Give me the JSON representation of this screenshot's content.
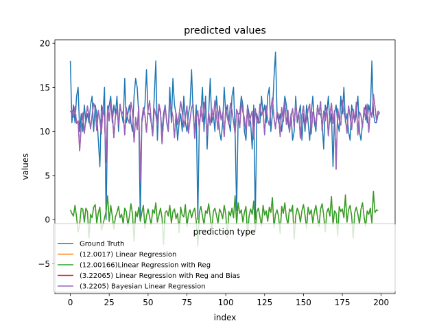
{
  "chart_data": {
    "type": "line",
    "title": "predicted values",
    "xlabel": "index",
    "ylabel": "values",
    "xlim": [
      -9.95,
      208.95
    ],
    "ylim": [
      -8.4,
      20.4
    ],
    "x_ticks": [
      0,
      25,
      50,
      75,
      100,
      125,
      150,
      175,
      200
    ],
    "y_ticks": [
      -5,
      0,
      5,
      10,
      15,
      20
    ],
    "grid": false,
    "legend": {
      "title": "prediction type",
      "placement": "lower-center",
      "entries": [
        "Ground Truth",
        "(12.0017) Linear Regression",
        "(12.00166)Linear Regression with Reg",
        "(3.22065) Linear Regression with Reg and Bias",
        "(3.2205) Bayesian Linear Regression"
      ]
    },
    "series": [
      {
        "name": "Ground Truth",
        "color": "#1f77b4",
        "x_start": 0,
        "values": [
          18,
          11,
          13,
          11,
          14,
          15,
          10,
          12,
          10,
          13,
          11,
          12,
          11,
          13,
          14,
          10,
          13,
          12,
          9,
          6,
          13,
          12,
          15,
          0,
          12,
          13,
          14,
          11,
          13,
          12,
          14,
          10,
          13,
          12,
          11,
          16,
          11,
          12,
          13,
          11,
          10,
          14,
          16,
          15,
          12,
          0,
          11,
          12,
          13,
          17,
          12,
          12,
          11,
          10,
          14,
          18,
          9,
          13,
          12,
          10,
          12,
          13,
          11,
          10,
          15,
          11,
          16,
          13,
          12,
          9,
          11,
          12,
          10,
          14,
          11,
          10,
          12,
          13,
          17,
          12,
          10,
          13,
          0,
          11,
          12,
          15,
          10,
          14,
          8,
          12,
          16,
          11,
          12,
          10,
          14,
          12,
          10,
          9,
          11,
          15,
          12,
          13,
          11,
          10,
          14,
          15,
          10,
          1,
          12,
          12,
          14,
          13,
          10,
          9,
          13,
          12,
          11,
          8,
          13,
          0,
          12,
          11,
          11,
          14,
          12,
          13,
          11,
          14,
          15,
          10,
          12,
          16,
          19,
          12,
          11,
          12,
          10,
          12,
          14,
          13,
          11,
          10,
          12,
          9,
          10,
          14,
          11,
          12,
          13,
          9,
          12,
          10,
          13,
          11,
          9,
          12,
          14,
          11,
          10,
          13,
          12,
          12,
          11,
          8,
          13,
          12,
          14,
          11,
          12,
          6,
          12,
          13,
          11,
          10,
          14,
          12,
          15,
          11,
          12,
          10,
          9,
          13,
          12,
          11,
          12,
          14,
          10,
          9,
          11,
          12,
          13,
          11,
          13,
          12,
          18,
          12,
          11,
          11,
          12,
          12
        ]
      },
      {
        "name": "(12.0017) Linear Regression",
        "color": "#ff7f0e",
        "x_start": 0,
        "values": [
          1.1,
          0.7,
          0.4,
          1.6,
          0.3,
          -1.4,
          -0.5,
          1.3,
          1.2,
          -0.3,
          1.3,
          0.9,
          -2.1,
          0.6,
          0.2,
          1.4,
          1.7,
          -0.4,
          0.8,
          1.4,
          -1.2,
          -0.6,
          0.2,
          0.9,
          2.7,
          -0.2,
          1.6,
          0.4,
          -1.1,
          0.3,
          0.8,
          1.5,
          0.2,
          0.6,
          -0.5,
          1.3,
          0.9,
          -0.7,
          0.4,
          1.8,
          0.6,
          -2.5,
          0.9,
          0.3,
          1.4,
          -0.2,
          0.8,
          1.6,
          -1.0,
          0.4,
          1.2,
          0.3,
          -0.6,
          1.1,
          0.7,
          1.9,
          -0.3,
          0.5,
          1.3,
          0.2,
          -2.8,
          0.8,
          1.0,
          0.4,
          1.6,
          -0.4,
          0.9,
          1.2,
          0.1,
          0.7,
          -1.5,
          1.4,
          0.5,
          0.3,
          1.7,
          -0.8,
          0.6,
          1.1,
          0.2,
          0.9,
          1.3,
          -0.2,
          -3.0,
          0.8,
          1.5,
          0.4,
          -0.6,
          1.0,
          0.7,
          1.8,
          0.3,
          -1.2,
          0.9,
          1.3,
          0.5,
          -0.4,
          1.2,
          0.8,
          0.1,
          1.6,
          0.6,
          -2.0,
          0.9,
          0.4,
          1.3,
          0.2,
          2.7,
          -0.5,
          1.9,
          0.7,
          1.1,
          -0.3,
          0.8,
          1.5,
          -1.8,
          0.4,
          1.2,
          0.6,
          2.1,
          -1.4,
          0.9,
          1.3,
          0.3,
          -0.7,
          1.6,
          0.5,
          1.0,
          -0.2,
          1.4,
          0.8,
          2.5,
          -0.9,
          0.6,
          1.1,
          0.3,
          -1.6,
          1.5,
          0.7,
          1.9,
          0.2,
          -0.5,
          1.2,
          0.9,
          1.6,
          -2.2,
          0.4,
          1.3,
          0.8,
          -0.3,
          1.0,
          1.7,
          0.5,
          -1.0,
          1.4,
          0.6,
          1.1,
          -0.4,
          0.9,
          1.6,
          0.3,
          -0.8,
          1.2,
          1.8,
          0.5,
          -1.4,
          0.8,
          1.3,
          0.4,
          2.6,
          -0.6,
          1.0,
          0.7,
          -1.9,
          1.5,
          0.9,
          1.2,
          0.2,
          2.8,
          -0.3,
          1.1,
          1.6,
          0.4,
          -2.1,
          0.8,
          1.4,
          0.6,
          -0.5,
          1.2,
          1.9,
          0.3,
          -0.8,
          1.0,
          0.6,
          1.3,
          -0.4,
          3.2,
          0.8,
          1.1,
          1.0
        ]
      },
      {
        "name": "(12.00166)Linear Regression with Reg",
        "color": "#2ca02c",
        "x_start": 0,
        "values": [
          1.1,
          0.7,
          0.4,
          1.6,
          0.3,
          -1.4,
          -0.5,
          1.3,
          1.2,
          -0.3,
          1.3,
          0.9,
          -2.1,
          0.6,
          0.2,
          1.4,
          1.7,
          -0.4,
          0.8,
          1.4,
          -1.2,
          -0.6,
          0.2,
          0.9,
          2.7,
          -0.2,
          1.6,
          0.4,
          -1.1,
          0.3,
          0.8,
          1.5,
          0.2,
          0.6,
          -0.5,
          1.3,
          0.9,
          -0.7,
          0.4,
          1.8,
          0.6,
          -2.5,
          0.9,
          0.3,
          1.4,
          -0.2,
          0.8,
          1.6,
          -1.0,
          0.4,
          1.2,
          0.3,
          -0.6,
          1.1,
          0.7,
          1.9,
          -0.3,
          0.5,
          1.3,
          0.2,
          -2.8,
          0.8,
          1.0,
          0.4,
          1.6,
          -0.4,
          0.9,
          1.2,
          0.1,
          0.7,
          -1.5,
          1.4,
          0.5,
          0.3,
          1.7,
          -0.8,
          0.6,
          1.1,
          0.2,
          0.9,
          1.3,
          -0.2,
          -3.0,
          0.8,
          1.5,
          0.4,
          -0.6,
          1.0,
          0.7,
          1.8,
          0.3,
          -1.2,
          0.9,
          1.3,
          0.5,
          -0.4,
          1.2,
          0.8,
          0.1,
          1.6,
          0.6,
          -2.0,
          0.9,
          0.4,
          1.3,
          0.2,
          2.7,
          -0.5,
          1.9,
          0.7,
          1.1,
          -0.3,
          0.8,
          1.5,
          -1.8,
          0.4,
          1.2,
          0.6,
          2.1,
          -1.4,
          0.9,
          1.3,
          0.3,
          -0.7,
          1.6,
          0.5,
          1.0,
          -0.2,
          1.4,
          0.8,
          2.5,
          -0.9,
          0.6,
          1.1,
          0.3,
          -1.6,
          1.5,
          0.7,
          1.9,
          0.2,
          -0.5,
          1.2,
          0.9,
          1.6,
          -2.2,
          0.4,
          1.3,
          0.8,
          -0.3,
          1.0,
          1.7,
          0.5,
          -1.0,
          1.4,
          0.6,
          1.1,
          -0.4,
          0.9,
          1.6,
          0.3,
          -0.8,
          1.2,
          1.8,
          0.5,
          -1.4,
          0.8,
          1.3,
          0.4,
          2.6,
          -0.6,
          1.0,
          0.7,
          -1.9,
          1.5,
          0.9,
          1.2,
          0.2,
          2.8,
          -0.3,
          1.1,
          1.6,
          0.4,
          -2.1,
          0.8,
          1.4,
          0.6,
          -0.5,
          1.2,
          1.9,
          0.3,
          -0.8,
          1.0,
          0.6,
          1.3,
          -0.4,
          3.2,
          0.8,
          1.1,
          1.0
        ]
      },
      {
        "name": "(3.22065) Linear Regression with Reg and Bias",
        "color": "#d62728",
        "x_start": 0,
        "values": [
          12.2,
          12.4,
          11.6,
          12.8,
          10.9,
          11.2,
          7.8,
          10.6,
          12.1,
          9.8,
          11.4,
          12.9,
          11.7,
          10.3,
          11.8,
          13.2,
          12.6,
          10.1,
          12.4,
          11.3,
          9.7,
          12.8,
          11.5,
          6.5,
          12.9,
          11.2,
          13.4,
          12.1,
          9.3,
          11.7,
          12.5,
          10.8,
          13.1,
          11.9,
          12.3,
          9.6,
          12.7,
          11.4,
          10.9,
          13.3,
          12.2,
          8.8,
          11.6,
          10.2,
          12.9,
          4.4,
          11.3,
          12.7,
          11.8,
          9.9,
          12.4,
          13.5,
          11.1,
          9.5,
          12.6,
          11.9,
          10.7,
          13.1,
          12.3,
          8.6,
          11.4,
          12.8,
          11.2,
          10.1,
          13.2,
          12.5,
          11.7,
          9.3,
          12.1,
          10.8,
          11.9,
          13.4,
          12.2,
          10.5,
          11.6,
          12.9,
          9.8,
          11.3,
          12.7,
          13.1,
          9.2,
          11.5,
          12.4,
          10.3,
          12.8,
          11.1,
          13.3,
          11.9,
          9.5,
          12.2,
          10.7,
          12.6,
          11.4,
          13.5,
          11.8,
          10.2,
          12.9,
          11.3,
          12.1,
          9.4,
          12.7,
          11.6,
          10.8,
          13.2,
          12.4,
          11.1,
          9.7,
          12.5,
          11.9,
          10.4,
          13.4,
          12.2,
          11.5,
          9.9,
          12.8,
          10.6,
          11.7,
          12.3,
          9.1,
          12.6,
          11.2,
          10.9,
          13.1,
          11.8,
          12.4,
          9.6,
          12.9,
          11.3,
          10.7,
          12.5,
          13.8,
          11.6,
          10.3,
          12.2,
          11.9,
          9.4,
          12.7,
          11.1,
          13.3,
          10.8,
          12.4,
          9.9,
          11.7,
          12.6,
          10.5,
          13.2,
          11.4,
          12.1,
          9.2,
          11.8,
          12.9,
          10.6,
          11.3,
          12.5,
          13.1,
          9.7,
          12.2,
          11.6,
          10.4,
          12.8,
          11.9,
          13.4,
          10.1,
          12.3,
          11.2,
          12.7,
          9.5,
          11.8,
          13.2,
          10.9,
          12.4,
          5.7,
          12.6,
          11.3,
          10.7,
          13.5,
          12.1,
          11.4,
          9.8,
          12.9,
          11.7,
          10.2,
          12.5,
          11.1,
          13.3,
          9.6,
          12.2,
          11.8,
          10.5,
          12.7,
          11.3,
          13.1,
          9.9,
          12.4,
          11.6,
          14.2,
          12.8,
          11.2,
          12.3,
          12.1
        ]
      },
      {
        "name": "(3.2205) Bayesian Linear Regression",
        "color": "#9467bd",
        "x_start": 0,
        "values": [
          12.2,
          12.4,
          11.6,
          12.8,
          10.9,
          11.2,
          7.8,
          10.6,
          12.1,
          9.8,
          11.4,
          12.9,
          11.7,
          10.3,
          11.8,
          13.2,
          12.6,
          10.1,
          12.4,
          11.3,
          9.7,
          12.8,
          11.5,
          6.5,
          12.9,
          11.2,
          13.4,
          12.1,
          9.3,
          11.7,
          12.5,
          10.8,
          13.1,
          11.9,
          12.3,
          9.6,
          12.7,
          11.4,
          10.9,
          13.3,
          12.2,
          8.8,
          11.6,
          10.2,
          12.9,
          4.4,
          11.3,
          12.7,
          11.8,
          9.9,
          12.4,
          13.5,
          11.1,
          9.5,
          12.6,
          11.9,
          10.7,
          13.1,
          12.3,
          8.6,
          11.4,
          12.8,
          11.2,
          10.1,
          13.2,
          12.5,
          11.7,
          9.3,
          12.1,
          10.8,
          11.9,
          13.4,
          12.2,
          10.5,
          11.6,
          12.9,
          9.8,
          11.3,
          12.7,
          13.1,
          9.2,
          11.5,
          12.4,
          10.3,
          12.8,
          11.1,
          13.3,
          11.9,
          9.5,
          12.2,
          10.7,
          12.6,
          11.4,
          13.5,
          11.8,
          10.2,
          12.9,
          11.3,
          12.1,
          9.4,
          12.7,
          11.6,
          10.8,
          13.2,
          12.4,
          11.1,
          9.7,
          12.5,
          11.9,
          10.4,
          13.4,
          12.2,
          11.5,
          9.9,
          12.8,
          10.6,
          11.7,
          12.3,
          9.1,
          12.6,
          11.2,
          10.9,
          13.1,
          11.8,
          12.4,
          9.6,
          12.9,
          11.3,
          10.7,
          12.5,
          13.8,
          11.6,
          10.3,
          12.2,
          11.9,
          9.4,
          12.7,
          11.1,
          13.3,
          10.8,
          12.4,
          9.9,
          11.7,
          12.6,
          10.5,
          13.2,
          11.4,
          12.1,
          9.2,
          11.8,
          12.9,
          10.6,
          11.3,
          12.5,
          13.1,
          9.7,
          12.2,
          11.6,
          10.4,
          12.8,
          11.9,
          13.4,
          10.1,
          12.3,
          11.2,
          12.7,
          9.5,
          11.8,
          13.2,
          10.9,
          12.4,
          5.7,
          12.6,
          11.3,
          10.7,
          13.5,
          12.1,
          11.4,
          9.8,
          12.9,
          11.7,
          10.2,
          12.5,
          11.1,
          13.3,
          9.6,
          12.2,
          11.8,
          10.5,
          12.7,
          11.3,
          13.1,
          9.9,
          12.4,
          11.6,
          14.2,
          12.8,
          11.2,
          12.3,
          12.1
        ]
      }
    ]
  }
}
